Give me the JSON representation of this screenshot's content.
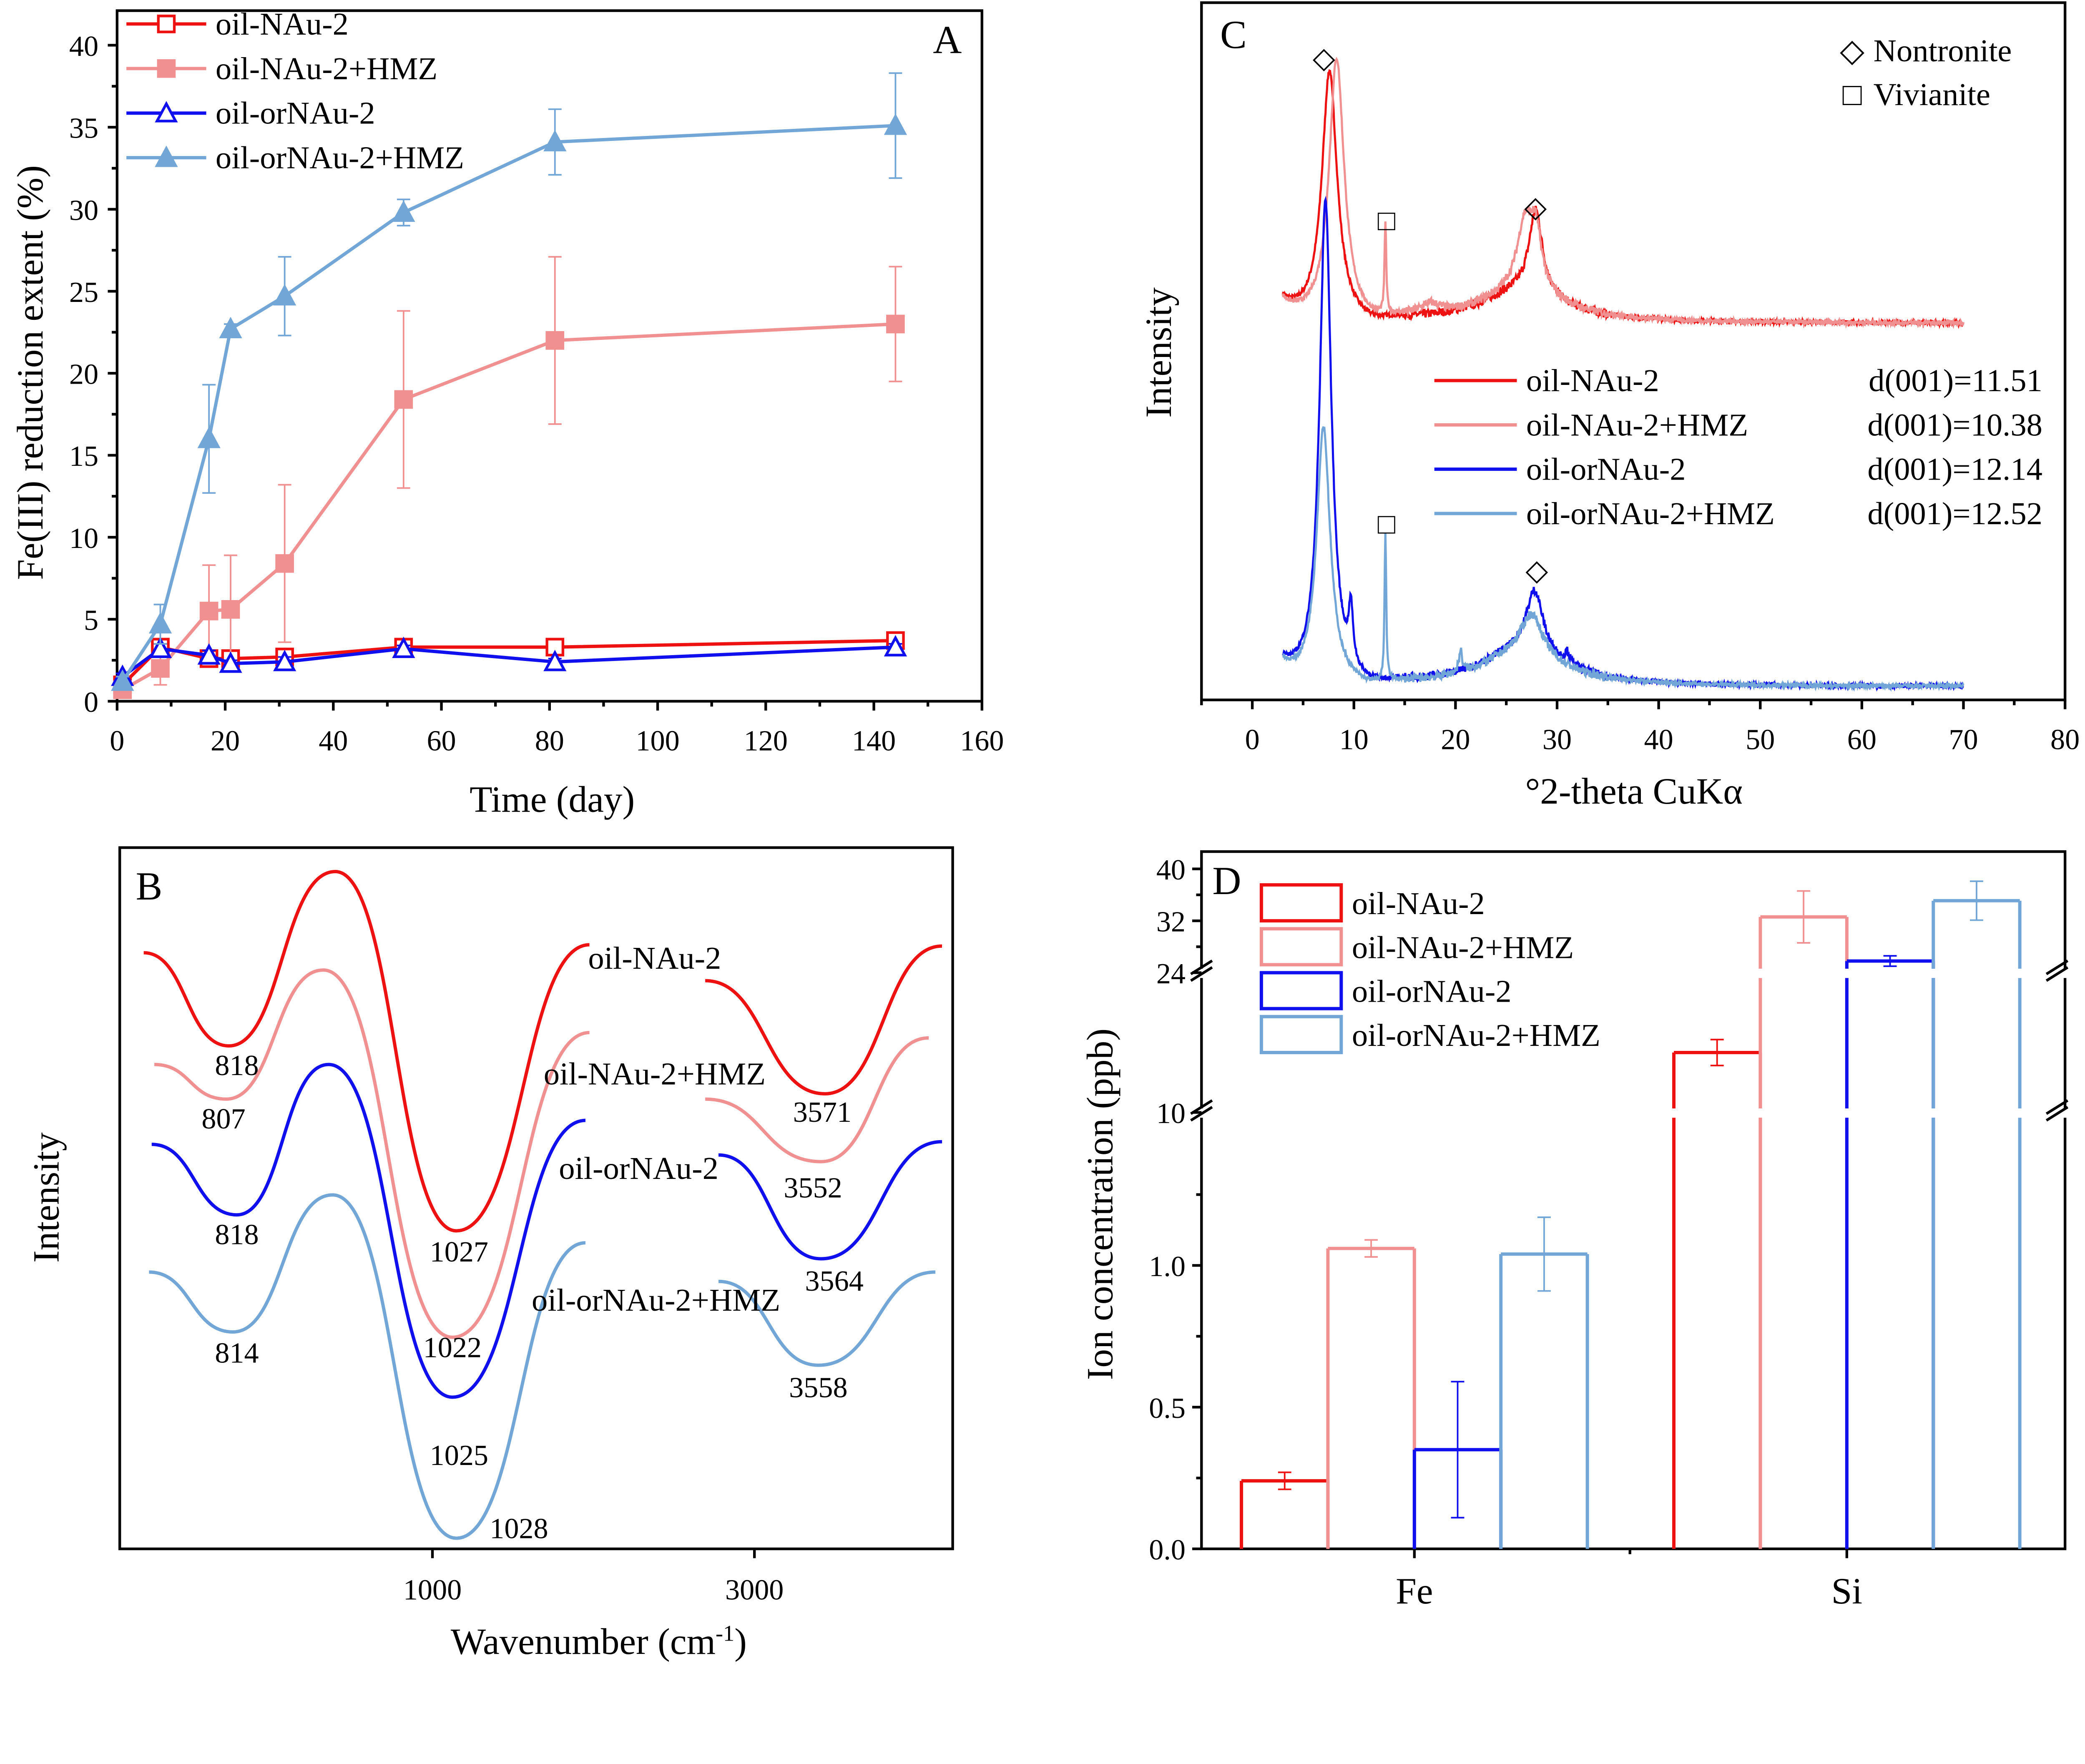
{
  "chart_data": [
    {
      "panel": "A",
      "type": "line",
      "xlabel": "Time (day)",
      "ylabel": "Fe(III) reduction extent (%)",
      "xlim": [
        0,
        160
      ],
      "ylim": [
        0,
        40
      ],
      "xticks": [
        "0",
        "20",
        "40",
        "60",
        "80",
        "100",
        "120",
        "140",
        "160"
      ],
      "yticks": [
        "0",
        "5",
        "10",
        "15",
        "20",
        "25",
        "30",
        "35",
        "40"
      ],
      "legend_position": "top-left",
      "x": [
        1,
        8,
        17,
        21,
        31,
        53,
        81,
        144
      ],
      "series": [
        {
          "name": "oil-NAu-2",
          "color": "#ee1111",
          "marker": "open-square",
          "values": [
            1.0,
            3.3,
            2.6,
            2.6,
            2.7,
            3.3,
            3.3,
            3.7
          ],
          "errors": [
            0.5,
            0.3,
            0.3,
            0.2,
            0.3,
            0.2,
            0.2,
            0.2
          ]
        },
        {
          "name": "oil-NAu-2+HMZ",
          "color": "#f09090",
          "marker": "filled-square",
          "values": [
            0.7,
            2.0,
            5.5,
            5.6,
            8.4,
            18.4,
            22.0,
            23.0
          ],
          "errors": [
            0.4,
            1.0,
            2.8,
            3.3,
            4.8,
            5.4,
            5.1,
            3.5
          ]
        },
        {
          "name": "oil-orNAu-2",
          "color": "#1010ee",
          "marker": "open-triangle",
          "values": [
            1.5,
            3.2,
            2.8,
            2.3,
            2.4,
            3.2,
            2.4,
            3.3
          ],
          "errors": [
            0.2,
            0.3,
            0.3,
            0.2,
            0.3,
            0.2,
            0.2,
            0.2
          ]
        },
        {
          "name": "oil-orNAu-2+HMZ",
          "color": "#72a6d6",
          "marker": "filled-triangle",
          "values": [
            1.2,
            4.7,
            16.0,
            22.7,
            24.7,
            29.8,
            34.1,
            35.1
          ],
          "errors": [
            0.3,
            1.2,
            3.3,
            0.3,
            2.4,
            0.8,
            2.0,
            3.2
          ]
        }
      ],
      "annotation": "A"
    },
    {
      "panel": "B",
      "type": "line",
      "xlabel": "Wavenumber (cm",
      "xlabel_sup": "-1",
      "xlabel_end": ")",
      "ylabel": "Intensity",
      "xticks": [
        "1000",
        "3000"
      ],
      "annotation": "B",
      "series": [
        {
          "name": "oil-NAu-2",
          "color": "#ee1111",
          "peaks": [
            "818",
            "1027",
            "3571"
          ]
        },
        {
          "name": "oil-NAu-2+HMZ",
          "color": "#f09090",
          "peaks": [
            "807",
            "1022",
            "3552"
          ]
        },
        {
          "name": "oil-orNAu-2",
          "color": "#1010ee",
          "peaks": [
            "818",
            "1025",
            "3564"
          ]
        },
        {
          "name": "oil-orNAu-2+HMZ",
          "color": "#72a6d6",
          "peaks": [
            "814",
            "1028",
            "3558"
          ]
        }
      ]
    },
    {
      "panel": "C",
      "type": "line",
      "xlabel": "°2-theta CuKα",
      "ylabel": "Intensity",
      "xlim": [
        -5,
        80
      ],
      "xticks": [
        "0",
        "10",
        "20",
        "30",
        "40",
        "50",
        "60",
        "70",
        "80"
      ],
      "x_range_measured": [
        3,
        70
      ],
      "annotation": "C",
      "phase_legend": [
        {
          "symbol": "◇",
          "label": "Nontronite"
        },
        {
          "symbol": "□",
          "label": "Vivianite"
        }
      ],
      "series": [
        {
          "name": "oil-NAu-2",
          "color": "#ee1111",
          "d001": "d(001)=11.51",
          "offset": 53.8,
          "peaks": [
            [
              7.6,
              35.7,
              0.9
            ],
            [
              27.9,
              12,
              0.8
            ],
            [
              26.5,
              4.5,
              5
            ],
            [
              13.1,
              0,
              0.1
            ]
          ]
        },
        {
          "name": "oil-NAu-2+HMZ",
          "color": "#f09090",
          "d001": "d(001)=10.38",
          "offset": 53.8,
          "peaks": [
            [
              8.3,
              37.5,
              0.9
            ],
            [
              26.8,
              9,
              0.9
            ],
            [
              27.9,
              8,
              0.7
            ],
            [
              26.5,
              4.5,
              5
            ],
            [
              13.1,
              13,
              0.1
            ],
            [
              17.5,
              1.5,
              1.2
            ]
          ]
        },
        {
          "name": "oil-orNAu-2",
          "color": "#1010ee",
          "d001": "d(001)=12.14",
          "offset": 1.9,
          "peaks": [
            [
              7.2,
              69,
              0.7
            ],
            [
              9.7,
              8,
              0.25
            ],
            [
              27.8,
              9,
              1.0
            ],
            [
              26.5,
              5,
              5
            ],
            [
              31,
              1.5,
              0.3
            ]
          ]
        },
        {
          "name": "oil-orNAu-2+HMZ",
          "color": "#72a6d6",
          "d001": "d(001)=12.52",
          "offset": 1.9,
          "peaks": [
            [
              7.0,
              36.7,
              0.8
            ],
            [
              13.1,
              21,
              0.1
            ],
            [
              27.5,
              6,
              1.3
            ],
            [
              26.5,
              4.5,
              5
            ],
            [
              20.5,
              3,
              0.2
            ]
          ]
        }
      ]
    },
    {
      "panel": "D",
      "type": "bar",
      "ylabel": "Ion concentration (ppb)",
      "categories": [
        "Fe",
        "Si"
      ],
      "yticks_lower": [
        "0.0",
        "0.5",
        "1.0"
      ],
      "yticks_middle": [
        "10"
      ],
      "yticks_upper": [
        "24",
        "32",
        "40"
      ],
      "y_segments": [
        [
          0,
          1.54
        ],
        [
          10,
          24
        ],
        [
          24,
          40
        ]
      ],
      "annotation": "D",
      "legend_position": "top-left",
      "series": [
        {
          "name": "oil-NAu-2",
          "color": "#ee1111",
          "values": [
            0.24,
            16.0
          ],
          "errors": [
            0.03,
            1.3
          ]
        },
        {
          "name": "oil-NAu-2+HMZ",
          "color": "#f09090",
          "values": [
            1.06,
            32.6
          ],
          "errors": [
            0.03,
            4.0
          ]
        },
        {
          "name": "oil-orNAu-2",
          "color": "#1010ee",
          "values": [
            0.35,
            25.8
          ],
          "errors": [
            0.24,
            0.8
          ]
        },
        {
          "name": "oil-orNAu-2+HMZ",
          "color": "#72a6d6",
          "values": [
            1.04,
            35.1
          ],
          "errors": [
            0.13,
            3.0
          ]
        }
      ]
    }
  ]
}
